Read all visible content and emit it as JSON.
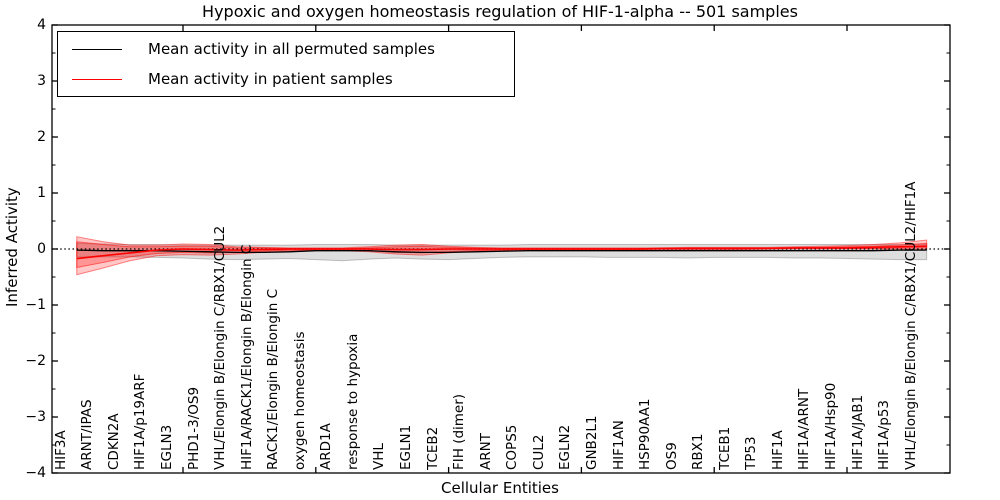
{
  "title": "Hypoxic and oxygen homeostasis regulation of HIF-1-alpha -- 501 samples",
  "legend": {
    "items": [
      {
        "label": "Mean activity in all permuted samples",
        "color": "#000000"
      },
      {
        "label": "Mean activity in patient samples",
        "color": "#ff0000"
      }
    ]
  },
  "chart_data": {
    "type": "line",
    "title": "Hypoxic and oxygen homeostasis regulation of HIF-1-alpha -- 501 samples",
    "xlabel": "Cellular Entities",
    "ylabel": "Inferred Activity",
    "ylim": [
      -4,
      4
    ],
    "yticks": [
      4,
      3,
      2,
      1,
      0,
      -1,
      -2,
      -3,
      -4
    ],
    "y_minor_tick_step": 0.5,
    "x_major_tick_indices": [
      4,
      9,
      14,
      19,
      24,
      29
    ],
    "grid": false,
    "legend_position": "upper left",
    "categories": [
      "HIF3A",
      "ARNT/IPAS",
      "CDKN2A",
      "HIF1A/p19ARF",
      "EGLN3",
      "PHD1-3/OS9",
      "VHL/Elongin B/Elongin C/RBX1/CUL2",
      "HIF1A/RACK1/Elongin B/Elongin C",
      "RACK1/Elongin B/Elongin C",
      "oxygen homeostasis",
      "ARD1A",
      "response to hypoxia",
      "VHL",
      "EGLN1",
      "TCEB2",
      "FIH (dimer)",
      "ARNT",
      "COPS5",
      "CUL2",
      "EGLN2",
      "GNB2L1",
      "HIF1AN",
      "HSP90AA1",
      "OS9",
      "RBX1",
      "TCEB1",
      "TP53",
      "HIF1A",
      "HIF1A/ARNT",
      "HIF1A/Hsp90",
      "HIF1A/JAB1",
      "HIF1A/p53",
      "VHL/Elongin B/Elongin C/RBX1/CUL2/HIF1A"
    ],
    "series": [
      {
        "name": "Mean activity in all permuted samples",
        "color": "#000000",
        "values": [
          -0.02,
          -0.03,
          -0.03,
          -0.03,
          -0.04,
          -0.05,
          -0.06,
          -0.06,
          -0.05,
          -0.03,
          -0.03,
          -0.03,
          -0.05,
          -0.06,
          -0.06,
          -0.05,
          -0.04,
          -0.03,
          -0.03,
          -0.03,
          -0.03,
          -0.03,
          -0.03,
          -0.03,
          -0.03,
          -0.03,
          -0.03,
          -0.03,
          -0.03,
          -0.03,
          -0.03,
          -0.02,
          -0.02
        ]
      },
      {
        "name": "Mean activity in patient samples",
        "color": "#ff0000",
        "values": [
          -0.17,
          -0.12,
          -0.07,
          -0.02,
          0,
          -0.01,
          -0.02,
          -0.01,
          0,
          0,
          0,
          0,
          -0.01,
          -0.01,
          0,
          0,
          0,
          0,
          0,
          0,
          0,
          0,
          0.01,
          0.01,
          0.01,
          0.01,
          0.01,
          0.02,
          0.02,
          0.02,
          0.03,
          0.04,
          0.05
        ]
      }
    ],
    "bands": [
      {
        "name": "permuted-samples-range",
        "fill": "rgba(0,0,0,0.13)",
        "edge": "rgba(0,0,0,0.22)",
        "upper": [
          0.1,
          0.09,
          0.08,
          0.08,
          0.07,
          0.07,
          0.07,
          0.07,
          0.07,
          0.08,
          0.08,
          0.08,
          0.07,
          0.07,
          0.07,
          0.07,
          0.07,
          0.08,
          0.08,
          0.08,
          0.08,
          0.08,
          0.08,
          0.08,
          0.08,
          0.08,
          0.08,
          0.08,
          0.08,
          0.08,
          0.08,
          0.08,
          0.09
        ],
        "lower": [
          -0.14,
          -0.14,
          -0.14,
          -0.15,
          -0.16,
          -0.18,
          -0.19,
          -0.18,
          -0.17,
          -0.19,
          -0.21,
          -0.18,
          -0.16,
          -0.18,
          -0.19,
          -0.17,
          -0.15,
          -0.14,
          -0.14,
          -0.14,
          -0.15,
          -0.15,
          -0.15,
          -0.16,
          -0.15,
          -0.15,
          -0.15,
          -0.16,
          -0.16,
          -0.17,
          -0.18,
          -0.19,
          -0.19
        ]
      },
      {
        "name": "patient-samples-range-outer",
        "fill": "rgba(255,0,0,0.22)",
        "edge": "rgba(255,0,0,0.45)",
        "upper": [
          0.22,
          0.13,
          0.07,
          0.07,
          0.09,
          0.08,
          0.04,
          0.03,
          0.02,
          0.02,
          0.02,
          0.04,
          0.07,
          0.08,
          0.05,
          0.03,
          0.02,
          0.02,
          0.02,
          0.02,
          0.02,
          0.02,
          0.02,
          0.03,
          0.03,
          0.03,
          0.03,
          0.04,
          0.05,
          0.06,
          0.08,
          0.11,
          0.16
        ],
        "lower": [
          -0.46,
          -0.34,
          -0.21,
          -0.12,
          -0.1,
          -0.11,
          -0.09,
          -0.06,
          -0.04,
          -0.03,
          -0.03,
          -0.05,
          -0.09,
          -0.11,
          -0.07,
          -0.04,
          -0.03,
          -0.02,
          -0.02,
          -0.02,
          -0.02,
          -0.02,
          -0.01,
          -0.01,
          -0.01,
          -0.01,
          0,
          0,
          0,
          0,
          0,
          0,
          -0.01
        ]
      },
      {
        "name": "patient-samples-range-inner",
        "fill": "rgba(255,0,0,0.25)",
        "edge": "rgba(255,0,0,0.5)",
        "upper": [
          0.13,
          0.08,
          0.04,
          0.04,
          0.05,
          0.05,
          0.02,
          0.02,
          0.01,
          0.01,
          0.01,
          0.02,
          0.04,
          0.05,
          0.03,
          0.02,
          0.01,
          0.01,
          0.01,
          0.01,
          0.01,
          0.01,
          0.01,
          0.02,
          0.02,
          0.02,
          0.02,
          0.02,
          0.03,
          0.04,
          0.05,
          0.07,
          0.1
        ],
        "lower": [
          -0.33,
          -0.24,
          -0.14,
          -0.08,
          -0.06,
          -0.07,
          -0.06,
          -0.04,
          -0.02,
          -0.02,
          -0.02,
          -0.03,
          -0.06,
          -0.07,
          -0.05,
          -0.03,
          -0.02,
          -0.01,
          -0.01,
          -0.01,
          -0.01,
          -0.01,
          0,
          0,
          0,
          0,
          0,
          0.01,
          0.01,
          0.01,
          0.01,
          0.02,
          0.02
        ]
      }
    ],
    "reference_line": {
      "y": 0,
      "style": "dotted",
      "color": "#000000"
    }
  }
}
